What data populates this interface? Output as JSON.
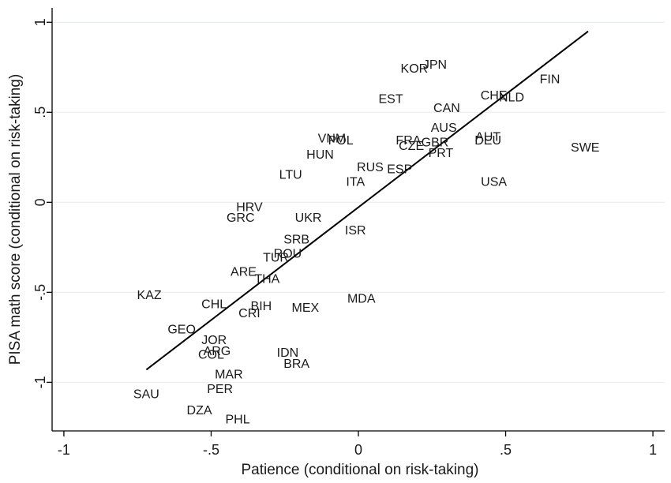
{
  "chart_data": {
    "type": "scatter",
    "title": "",
    "xlabel": "Patience (conditional on risk-taking)",
    "ylabel": "PISA math score (conditional on risk-taking)",
    "xlim": [
      -1.04,
      1.04
    ],
    "ylim": [
      -1.27,
      1.08
    ],
    "xticks": [
      {
        "value": -1,
        "label": "-1"
      },
      {
        "value": -0.5,
        "label": "-.5"
      },
      {
        "value": 0,
        "label": "0"
      },
      {
        "value": 0.5,
        "label": ".5"
      },
      {
        "value": 1,
        "label": "1"
      }
    ],
    "yticks": [
      {
        "value": -1,
        "label": "-1"
      },
      {
        "value": -0.5,
        "label": "-.5"
      },
      {
        "value": 0,
        "label": "0"
      },
      {
        "value": 0.5,
        "label": ".5"
      },
      {
        "value": 1,
        "label": "1"
      }
    ],
    "grid": "horizontal",
    "fit_line": {
      "x": [
        -0.72,
        0.78
      ],
      "y": [
        -0.93,
        0.95
      ]
    },
    "points": [
      {
        "label": "KOR",
        "x": 0.19,
        "y": 0.74
      },
      {
        "label": "JPN",
        "x": 0.26,
        "y": 0.76
      },
      {
        "label": "FIN",
        "x": 0.65,
        "y": 0.68
      },
      {
        "label": "EST",
        "x": 0.11,
        "y": 0.57
      },
      {
        "label": "CHE",
        "x": 0.46,
        "y": 0.59
      },
      {
        "label": "NLD",
        "x": 0.52,
        "y": 0.58
      },
      {
        "label": "CAN",
        "x": 0.3,
        "y": 0.52
      },
      {
        "label": "AUS",
        "x": 0.29,
        "y": 0.41
      },
      {
        "label": "VNM",
        "x": -0.09,
        "y": 0.35
      },
      {
        "label": "POL",
        "x": -0.06,
        "y": 0.34
      },
      {
        "label": "FRA",
        "x": 0.17,
        "y": 0.34
      },
      {
        "label": "GBR",
        "x": 0.26,
        "y": 0.33
      },
      {
        "label": "CZE",
        "x": 0.18,
        "y": 0.31
      },
      {
        "label": "AUT",
        "x": 0.44,
        "y": 0.36
      },
      {
        "label": "DEU",
        "x": 0.44,
        "y": 0.34
      },
      {
        "label": "SWE",
        "x": 0.77,
        "y": 0.3
      },
      {
        "label": "PRT",
        "x": 0.28,
        "y": 0.27
      },
      {
        "label": "HUN",
        "x": -0.13,
        "y": 0.26
      },
      {
        "label": "RUS",
        "x": 0.04,
        "y": 0.19
      },
      {
        "label": "ESP",
        "x": 0.14,
        "y": 0.18
      },
      {
        "label": "LTU",
        "x": -0.23,
        "y": 0.15
      },
      {
        "label": "ITA",
        "x": -0.01,
        "y": 0.11
      },
      {
        "label": "USA",
        "x": 0.46,
        "y": 0.11
      },
      {
        "label": "HRV",
        "x": -0.37,
        "y": -0.03
      },
      {
        "label": "GRC",
        "x": -0.4,
        "y": -0.09
      },
      {
        "label": "UKR",
        "x": -0.17,
        "y": -0.09
      },
      {
        "label": "ISR",
        "x": -0.01,
        "y": -0.16
      },
      {
        "label": "SRB",
        "x": -0.21,
        "y": -0.21
      },
      {
        "label": "ROU",
        "x": -0.24,
        "y": -0.29
      },
      {
        "label": "TUR",
        "x": -0.28,
        "y": -0.31
      },
      {
        "label": "ARE",
        "x": -0.39,
        "y": -0.39
      },
      {
        "label": "THA",
        "x": -0.31,
        "y": -0.43
      },
      {
        "label": "KAZ",
        "x": -0.71,
        "y": -0.52
      },
      {
        "label": "MDA",
        "x": 0.01,
        "y": -0.54
      },
      {
        "label": "CHL",
        "x": -0.49,
        "y": -0.57
      },
      {
        "label": "BIH",
        "x": -0.33,
        "y": -0.58
      },
      {
        "label": "MEX",
        "x": -0.18,
        "y": -0.59
      },
      {
        "label": "CRI",
        "x": -0.37,
        "y": -0.62
      },
      {
        "label": "GEO",
        "x": -0.6,
        "y": -0.71
      },
      {
        "label": "JOR",
        "x": -0.49,
        "y": -0.77
      },
      {
        "label": "ARG",
        "x": -0.48,
        "y": -0.83
      },
      {
        "label": "COL",
        "x": -0.5,
        "y": -0.85
      },
      {
        "label": "IDN",
        "x": -0.24,
        "y": -0.84
      },
      {
        "label": "BRA",
        "x": -0.21,
        "y": -0.9
      },
      {
        "label": "MAR",
        "x": -0.44,
        "y": -0.96
      },
      {
        "label": "PER",
        "x": -0.47,
        "y": -1.04
      },
      {
        "label": "SAU",
        "x": -0.72,
        "y": -1.07
      },
      {
        "label": "DZA",
        "x": -0.54,
        "y": -1.16
      },
      {
        "label": "PHL",
        "x": -0.41,
        "y": -1.21
      }
    ]
  }
}
